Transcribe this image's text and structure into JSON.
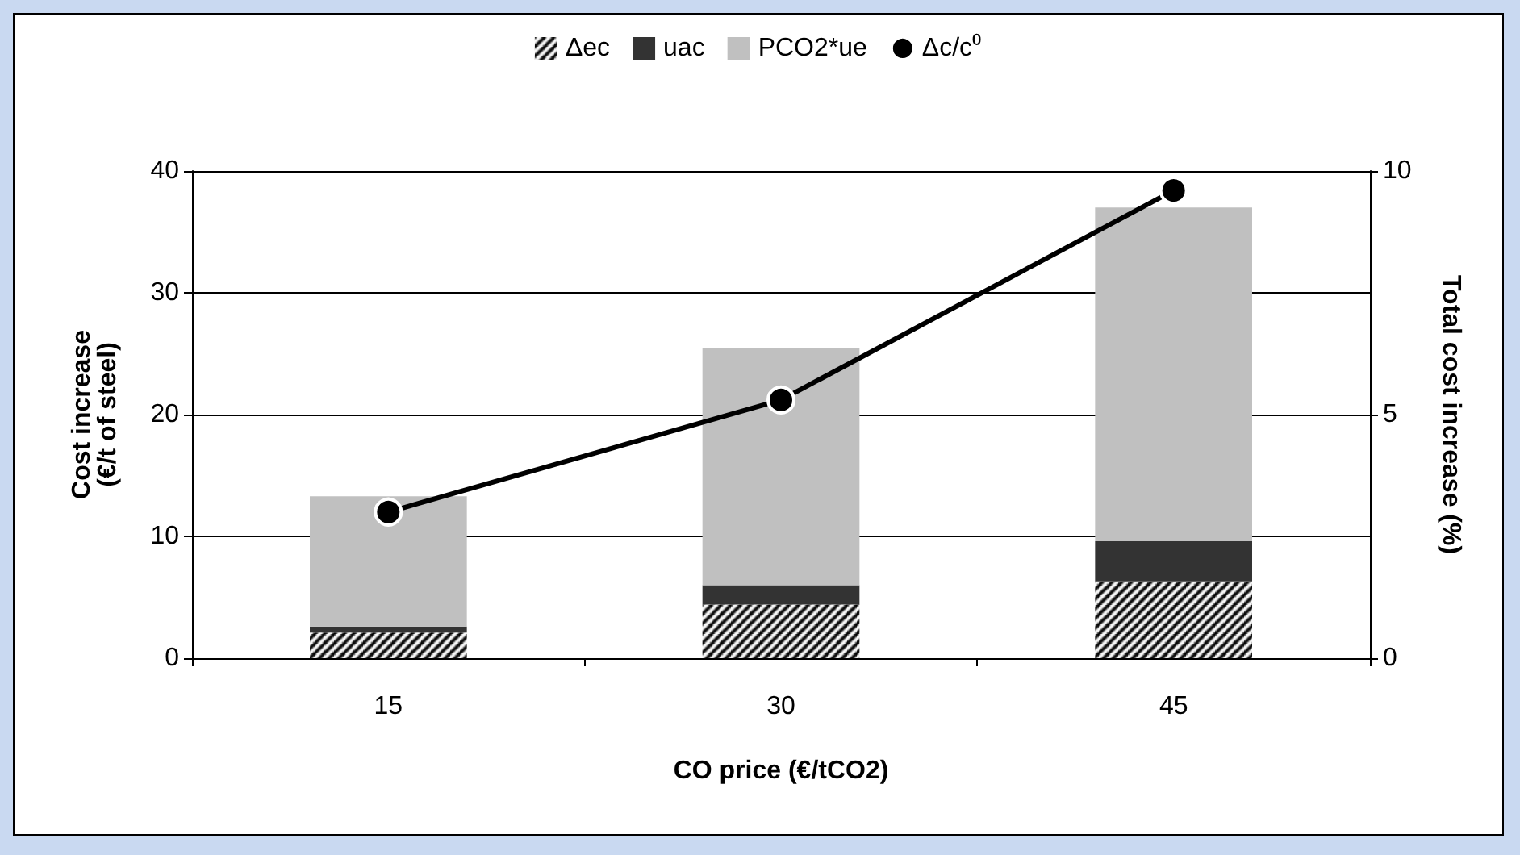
{
  "chart_data": {
    "type": "bar",
    "stacked": true,
    "categories": [
      "15",
      "30",
      "45"
    ],
    "xlabel": "CO price (€/tCO2)",
    "ylabel": "Cost increase\n(€/t of steel)",
    "y2label": "Total cost increase (%)",
    "ylim": [
      0,
      40
    ],
    "yticks": [
      0,
      10,
      20,
      30,
      40
    ],
    "y2lim": [
      0,
      10
    ],
    "y2ticks": [
      0,
      5,
      10
    ],
    "grid": "y",
    "legend": "top",
    "marker": "circle",
    "series": [
      {
        "name": "Δec",
        "color": "#000000",
        "values": [
          2.1,
          4.4,
          6.3
        ]
      },
      {
        "name": "uac",
        "color": "#333333",
        "values": [
          0.5,
          1.6,
          3.3
        ]
      },
      {
        "name": "PCO2*ue",
        "color": "#c0c0c0",
        "values": [
          10.7,
          19.5,
          27.4
        ]
      },
      {
        "name": "Δc/c⁰",
        "type": "line",
        "axis": "y2",
        "color": "#000000",
        "values": [
          3.0,
          5.3,
          9.6
        ]
      }
    ]
  }
}
